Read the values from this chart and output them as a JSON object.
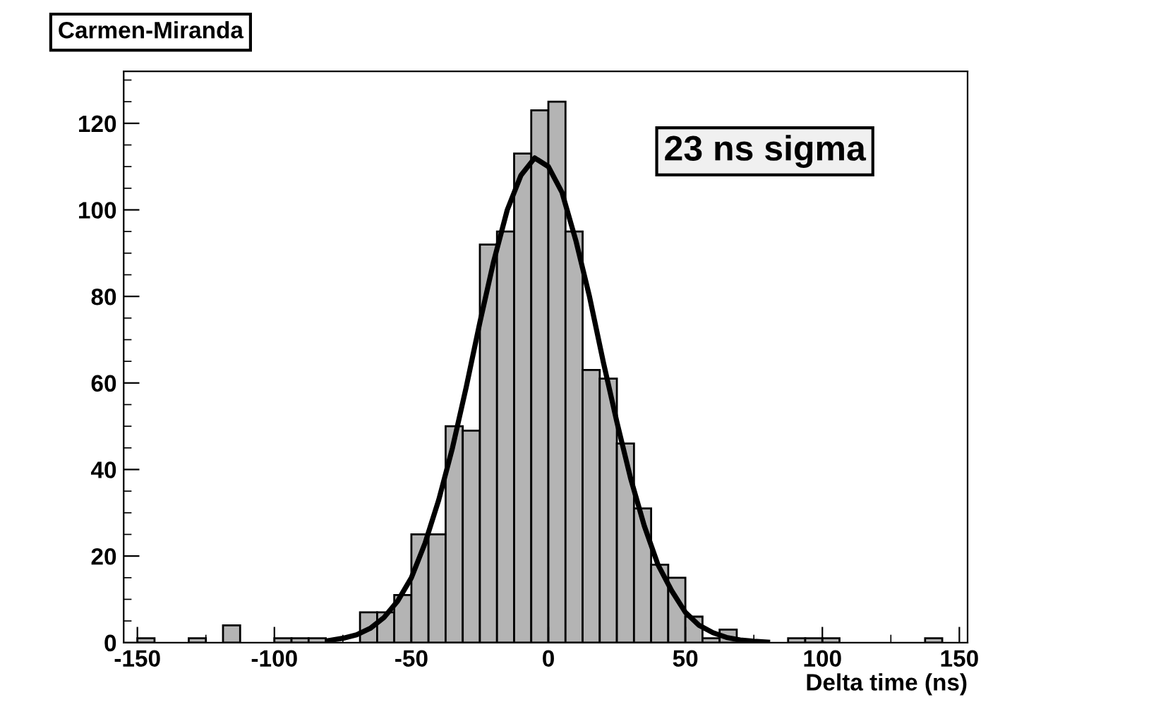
{
  "chart_data": {
    "type": "histogram",
    "title": "Carmen-Miranda",
    "xlabel": "Delta time (ns)",
    "bins": [
      -150,
      -143.75,
      -137.5,
      -131.25,
      -125,
      -118.75,
      -112.5,
      -106.25,
      -100,
      -93.75,
      -87.5,
      -81.25,
      -75,
      -68.75,
      -62.5,
      -56.25,
      -50,
      -43.75,
      -37.5,
      -31.25,
      -25,
      -18.75,
      -12.5,
      -6.25,
      0,
      6.25,
      12.5,
      18.75,
      25,
      31.25,
      37.5,
      43.75,
      50,
      56.25,
      62.5,
      68.75,
      75,
      81.25,
      87.5,
      93.75,
      100,
      106.25,
      112.5,
      118.75,
      125,
      131.25,
      137.5,
      143.75,
      150
    ],
    "values": [
      1,
      0,
      0,
      1,
      0,
      4,
      0,
      0,
      1,
      1,
      1,
      0,
      0,
      7,
      7,
      11,
      25,
      25,
      50,
      49,
      92,
      95,
      113,
      123,
      125,
      95,
      63,
      61,
      46,
      31,
      18,
      15,
      6,
      1,
      3,
      0,
      0,
      0,
      1,
      1,
      1,
      0,
      0,
      0,
      0,
      0,
      1,
      0
    ],
    "color": "#b4b4b4",
    "series": [
      {
        "type": "line",
        "color": "#000000",
        "x": [
          -80,
          -75,
          -70,
          -65,
          -60,
          -55,
          -50,
          -45,
          -40,
          -35,
          -30,
          -25,
          -20,
          -15,
          -10,
          -5,
          0,
          5,
          10,
          15,
          20,
          25,
          30,
          35,
          40,
          45,
          50,
          55,
          60,
          65,
          70,
          75,
          80
        ],
        "values": [
          0.5,
          1,
          1.8,
          3.3,
          5.8,
          9.6,
          15,
          23,
          33,
          45,
          59,
          74,
          88,
          100,
          108,
          112,
          110,
          104,
          93,
          80,
          65,
          51,
          38,
          27,
          18,
          12,
          7,
          4,
          2.3,
          1.2,
          0.6,
          0.3,
          0.1
        ]
      }
    ],
    "xlim": [
      -155,
      153
    ],
    "xticks": [
      -150,
      -100,
      -50,
      0,
      50,
      100,
      150
    ],
    "ylim": [
      0,
      132
    ],
    "yticks": [
      0,
      20,
      40,
      60,
      80,
      100,
      120
    ],
    "annotations": [
      "23 ns sigma"
    ],
    "grid": false,
    "legend": false
  }
}
